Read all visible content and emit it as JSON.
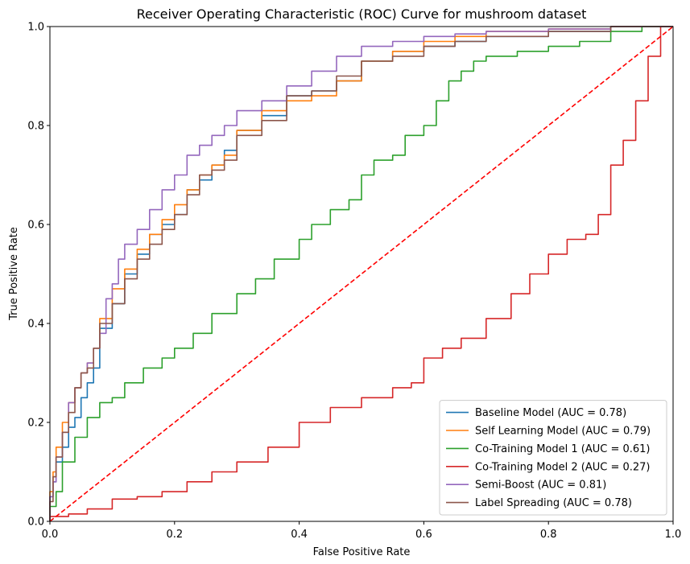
{
  "chart_data": {
    "type": "line",
    "title": "Receiver Operating Characteristic (ROC) Curve for mushroom dataset",
    "xlabel": "False Positive Rate",
    "ylabel": "True Positive Rate",
    "xlim": [
      0,
      1
    ],
    "ylim": [
      0,
      1
    ],
    "xticks": [
      "0.0",
      "0.2",
      "0.4",
      "0.6",
      "0.8",
      "1.0"
    ],
    "yticks": [
      "0.0",
      "0.2",
      "0.4",
      "0.6",
      "0.8",
      "1.0"
    ],
    "grid": false,
    "legend_position": "lower-right",
    "series": [
      {
        "name": "Baseline Model (AUC = 0.78)",
        "color": "#1f77b4",
        "style": "solid",
        "x": [
          0,
          0.005,
          0.01,
          0.02,
          0.03,
          0.04,
          0.05,
          0.06,
          0.07,
          0.08,
          0.1,
          0.12,
          0.14,
          0.16,
          0.18,
          0.2,
          0.22,
          0.24,
          0.26,
          0.28,
          0.3,
          0.34,
          0.38,
          0.42,
          0.46,
          0.5,
          0.55,
          0.6,
          0.65,
          0.7,
          0.8,
          0.9,
          1.0
        ],
        "y": [
          0,
          0.05,
          0.08,
          0.12,
          0.15,
          0.19,
          0.21,
          0.25,
          0.28,
          0.31,
          0.39,
          0.44,
          0.5,
          0.54,
          0.58,
          0.6,
          0.62,
          0.67,
          0.69,
          0.72,
          0.75,
          0.79,
          0.82,
          0.86,
          0.87,
          0.89,
          0.93,
          0.95,
          0.96,
          0.97,
          0.98,
          0.99,
          1.0
        ]
      },
      {
        "name": "Self Learning Model (AUC = 0.79)",
        "color": "#ff7f0e",
        "style": "solid",
        "x": [
          0,
          0.005,
          0.01,
          0.02,
          0.03,
          0.04,
          0.05,
          0.06,
          0.07,
          0.08,
          0.1,
          0.12,
          0.14,
          0.16,
          0.18,
          0.2,
          0.22,
          0.24,
          0.26,
          0.28,
          0.3,
          0.34,
          0.38,
          0.42,
          0.46,
          0.5,
          0.55,
          0.6,
          0.65,
          0.7,
          0.8,
          0.9,
          1.0
        ],
        "y": [
          0,
          0.06,
          0.1,
          0.15,
          0.2,
          0.24,
          0.27,
          0.3,
          0.32,
          0.35,
          0.41,
          0.47,
          0.51,
          0.55,
          0.58,
          0.61,
          0.64,
          0.67,
          0.7,
          0.72,
          0.74,
          0.79,
          0.83,
          0.85,
          0.86,
          0.89,
          0.93,
          0.95,
          0.97,
          0.98,
          0.99,
          0.995,
          1.0
        ]
      },
      {
        "name": "Co-Training Model 1 (AUC = 0.61)",
        "color": "#2ca02c",
        "style": "solid",
        "x": [
          0,
          0.01,
          0.02,
          0.04,
          0.06,
          0.08,
          0.1,
          0.12,
          0.15,
          0.18,
          0.2,
          0.23,
          0.26,
          0.3,
          0.33,
          0.36,
          0.4,
          0.42,
          0.45,
          0.48,
          0.5,
          0.52,
          0.55,
          0.57,
          0.6,
          0.62,
          0.64,
          0.66,
          0.68,
          0.7,
          0.75,
          0.8,
          0.85,
          0.9,
          0.95,
          1.0
        ],
        "y": [
          0,
          0.03,
          0.06,
          0.12,
          0.17,
          0.21,
          0.24,
          0.25,
          0.28,
          0.31,
          0.33,
          0.35,
          0.38,
          0.42,
          0.46,
          0.49,
          0.53,
          0.57,
          0.6,
          0.63,
          0.65,
          0.7,
          0.73,
          0.74,
          0.78,
          0.8,
          0.85,
          0.89,
          0.91,
          0.93,
          0.94,
          0.95,
          0.96,
          0.97,
          0.99,
          1.0
        ]
      },
      {
        "name": "Co-Training Model 2 (AUC = 0.27)",
        "color": "#d62728",
        "style": "solid",
        "x": [
          0,
          0.03,
          0.06,
          0.1,
          0.14,
          0.18,
          0.22,
          0.26,
          0.3,
          0.35,
          0.4,
          0.45,
          0.5,
          0.55,
          0.58,
          0.6,
          0.63,
          0.66,
          0.7,
          0.74,
          0.77,
          0.8,
          0.83,
          0.86,
          0.88,
          0.9,
          0.92,
          0.94,
          0.96,
          0.98,
          1.0
        ],
        "y": [
          0,
          0.01,
          0.015,
          0.025,
          0.045,
          0.05,
          0.06,
          0.08,
          0.1,
          0.12,
          0.15,
          0.2,
          0.23,
          0.25,
          0.27,
          0.28,
          0.33,
          0.35,
          0.37,
          0.41,
          0.46,
          0.5,
          0.54,
          0.57,
          0.58,
          0.62,
          0.72,
          0.77,
          0.85,
          0.94,
          1.0
        ]
      },
      {
        "name": "Semi-Boost (AUC = 0.81)",
        "color": "#9467bd",
        "style": "solid",
        "x": [
          0,
          0.005,
          0.01,
          0.02,
          0.03,
          0.04,
          0.05,
          0.06,
          0.07,
          0.08,
          0.09,
          0.1,
          0.11,
          0.12,
          0.14,
          0.16,
          0.18,
          0.2,
          0.22,
          0.24,
          0.26,
          0.28,
          0.3,
          0.34,
          0.38,
          0.42,
          0.46,
          0.5,
          0.55,
          0.6,
          0.65,
          0.7,
          0.8,
          0.9,
          1.0
        ],
        "y": [
          0,
          0.05,
          0.08,
          0.13,
          0.18,
          0.24,
          0.27,
          0.3,
          0.32,
          0.35,
          0.38,
          0.45,
          0.48,
          0.53,
          0.56,
          0.59,
          0.63,
          0.67,
          0.7,
          0.74,
          0.76,
          0.78,
          0.8,
          0.83,
          0.85,
          0.88,
          0.91,
          0.94,
          0.96,
          0.97,
          0.98,
          0.985,
          0.99,
          0.995,
          1.0
        ]
      },
      {
        "name": "Label Spreading (AUC = 0.78)",
        "color": "#8c564b",
        "style": "solid",
        "x": [
          0,
          0.005,
          0.01,
          0.02,
          0.03,
          0.04,
          0.05,
          0.06,
          0.07,
          0.08,
          0.1,
          0.12,
          0.14,
          0.16,
          0.18,
          0.2,
          0.22,
          0.24,
          0.26,
          0.28,
          0.3,
          0.34,
          0.38,
          0.42,
          0.46,
          0.5,
          0.55,
          0.6,
          0.65,
          0.7,
          0.8,
          0.9,
          1.0
        ],
        "y": [
          0,
          0.04,
          0.09,
          0.13,
          0.18,
          0.22,
          0.27,
          0.3,
          0.31,
          0.35,
          0.4,
          0.44,
          0.49,
          0.53,
          0.56,
          0.59,
          0.62,
          0.66,
          0.7,
          0.71,
          0.73,
          0.78,
          0.81,
          0.86,
          0.87,
          0.9,
          0.93,
          0.94,
          0.96,
          0.97,
          0.98,
          0.99,
          1.0
        ]
      },
      {
        "name": "",
        "color": "#ff0000",
        "style": "dashed",
        "x": [
          0,
          1
        ],
        "y": [
          0,
          1
        ]
      }
    ]
  }
}
